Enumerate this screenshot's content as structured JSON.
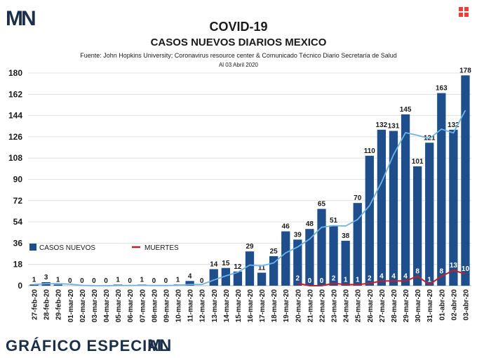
{
  "header": {
    "logo_text": "MN",
    "corner_icon": "grid-icon"
  },
  "footer": {
    "text": "GRÁFICO ESPECIAL",
    "logo_text": "MN"
  },
  "colors": {
    "background": "#ffffff",
    "bars": "#1f4e8c",
    "trend_line": "#6ab4e8",
    "deaths_line": "#c0202a",
    "accent": "#e8413a"
  },
  "chart_data": {
    "type": "bar",
    "title": "COVID-19",
    "subtitle": "CASOS NUEVOS DIARIOS MEXICO",
    "source": "Fuente: John Hopkins University; Coronavirus resource center & Comunicado Técnico Diario Secretaría de Salud",
    "date_note": "Al 03 Abril 2020",
    "ylim": [
      0,
      180
    ],
    "yticks": [
      0,
      18,
      36,
      54,
      72,
      90,
      108,
      126,
      144,
      162,
      180
    ],
    "grid": true,
    "legend_position": "middle-left",
    "categories": [
      "27-feb-20",
      "28-feb-20",
      "29-feb-20",
      "01-mar-20",
      "02-mar-20",
      "03-mar-20",
      "04-mar-20",
      "05-mar-20",
      "06-mar-20",
      "07-mar-20",
      "08-mar-20",
      "09-mar-20",
      "10-mar-20",
      "11-mar-20",
      "12-mar-20",
      "13-mar-20",
      "14-mar-20",
      "15-mar-20",
      "16-mar-20",
      "17-mar-20",
      "18-mar-20",
      "19-mar-20",
      "20-mar-20",
      "21-mar-20",
      "22-mar-20",
      "23-mar-20",
      "24-mar-20",
      "25-mar-20",
      "26-mar-20",
      "27-mar-20",
      "28-mar-20",
      "29-mar-20",
      "30-mar-20",
      "31-mar-20",
      "01-abr-20",
      "02-abr-20",
      "03-abr-20"
    ],
    "series": [
      {
        "name": "CASOS NUEVOS",
        "type": "bar",
        "values": [
          1,
          3,
          1,
          0,
          0,
          0,
          0,
          1,
          0,
          1,
          0,
          0,
          1,
          4,
          0,
          14,
          15,
          12,
          29,
          11,
          25,
          46,
          39,
          48,
          65,
          51,
          38,
          70,
          110,
          132,
          131,
          145,
          101,
          121,
          163,
          132,
          178
        ]
      },
      {
        "name": "MUERTES",
        "type": "line",
        "values": [
          null,
          null,
          null,
          null,
          null,
          null,
          null,
          null,
          null,
          null,
          null,
          null,
          null,
          null,
          null,
          null,
          null,
          null,
          null,
          null,
          null,
          null,
          2,
          0,
          0,
          2,
          1,
          1,
          2,
          4,
          4,
          4,
          8,
          1,
          8,
          13,
          10
        ]
      },
      {
        "type": "line",
        "values": [
          1,
          1.7,
          1.7,
          1.3,
          0.3,
          0,
          0,
          0.2,
          0.2,
          0.3,
          0.2,
          0.2,
          0.3,
          1,
          1,
          4.8,
          8.3,
          11.3,
          17.5,
          16.8,
          19.3,
          27.8,
          32.8,
          39.5,
          49.5,
          50.8,
          50.5,
          56,
          67.8,
          87.5,
          110.8,
          129.5,
          127.3,
          124.5,
          132.5,
          129.3,
          148.5
        ]
      }
    ]
  }
}
